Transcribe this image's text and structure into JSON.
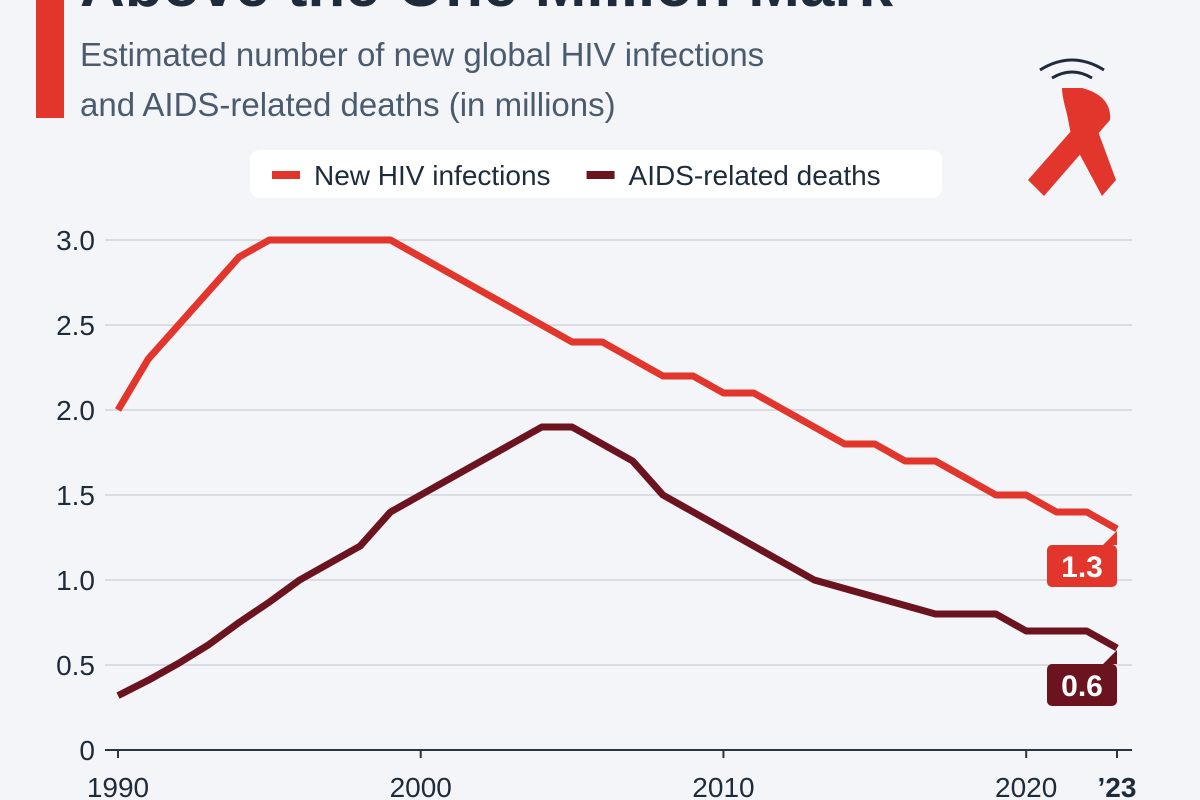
{
  "chart_data": {
    "type": "line",
    "title": "Above the One Million Mark",
    "subtitle": "Estimated number of new global HIV infections and AIDS-related deaths (in millions)",
    "x": [
      1990,
      1991,
      1992,
      1993,
      1994,
      1995,
      1996,
      1997,
      1998,
      1999,
      2000,
      2001,
      2002,
      2003,
      2004,
      2005,
      2006,
      2007,
      2008,
      2009,
      2010,
      2011,
      2012,
      2013,
      2014,
      2015,
      2016,
      2017,
      2018,
      2019,
      2020,
      2021,
      2022,
      2023
    ],
    "series": [
      {
        "name": "New HIV infections",
        "color": "#e2352c",
        "values": [
          2.0,
          2.3,
          2.5,
          2.7,
          2.9,
          3.0,
          3.0,
          3.0,
          3.0,
          3.0,
          2.9,
          2.8,
          2.7,
          2.6,
          2.5,
          2.4,
          2.4,
          2.3,
          2.2,
          2.2,
          2.1,
          2.1,
          2.0,
          1.9,
          1.8,
          1.8,
          1.7,
          1.7,
          1.6,
          1.5,
          1.5,
          1.4,
          1.4,
          1.3
        ]
      },
      {
        "name": "AIDS-related deaths",
        "color": "#6b1420",
        "values": [
          0.32,
          0.41,
          0.51,
          0.62,
          0.75,
          0.87,
          1.0,
          1.1,
          1.2,
          1.4,
          1.5,
          1.6,
          1.7,
          1.8,
          1.9,
          1.9,
          1.8,
          1.7,
          1.5,
          1.4,
          1.3,
          1.2,
          1.1,
          1.0,
          0.95,
          0.9,
          0.85,
          0.8,
          0.8,
          0.8,
          0.7,
          0.7,
          0.7,
          0.6
        ]
      }
    ],
    "xlim": [
      1990,
      2023
    ],
    "xticks": [
      1990,
      2000,
      2010,
      2020,
      {
        "value": 2023,
        "label": "’23"
      }
    ],
    "ylim": [
      0,
      3
    ],
    "yticks": [
      0,
      0.5,
      {
        "value": 1,
        "label": "1.0"
      },
      1.5,
      {
        "value": 2,
        "label": "2.0"
      },
      2.5,
      {
        "value": 3,
        "label": "3.0"
      }
    ],
    "grid": true,
    "legend": "top"
  }
}
